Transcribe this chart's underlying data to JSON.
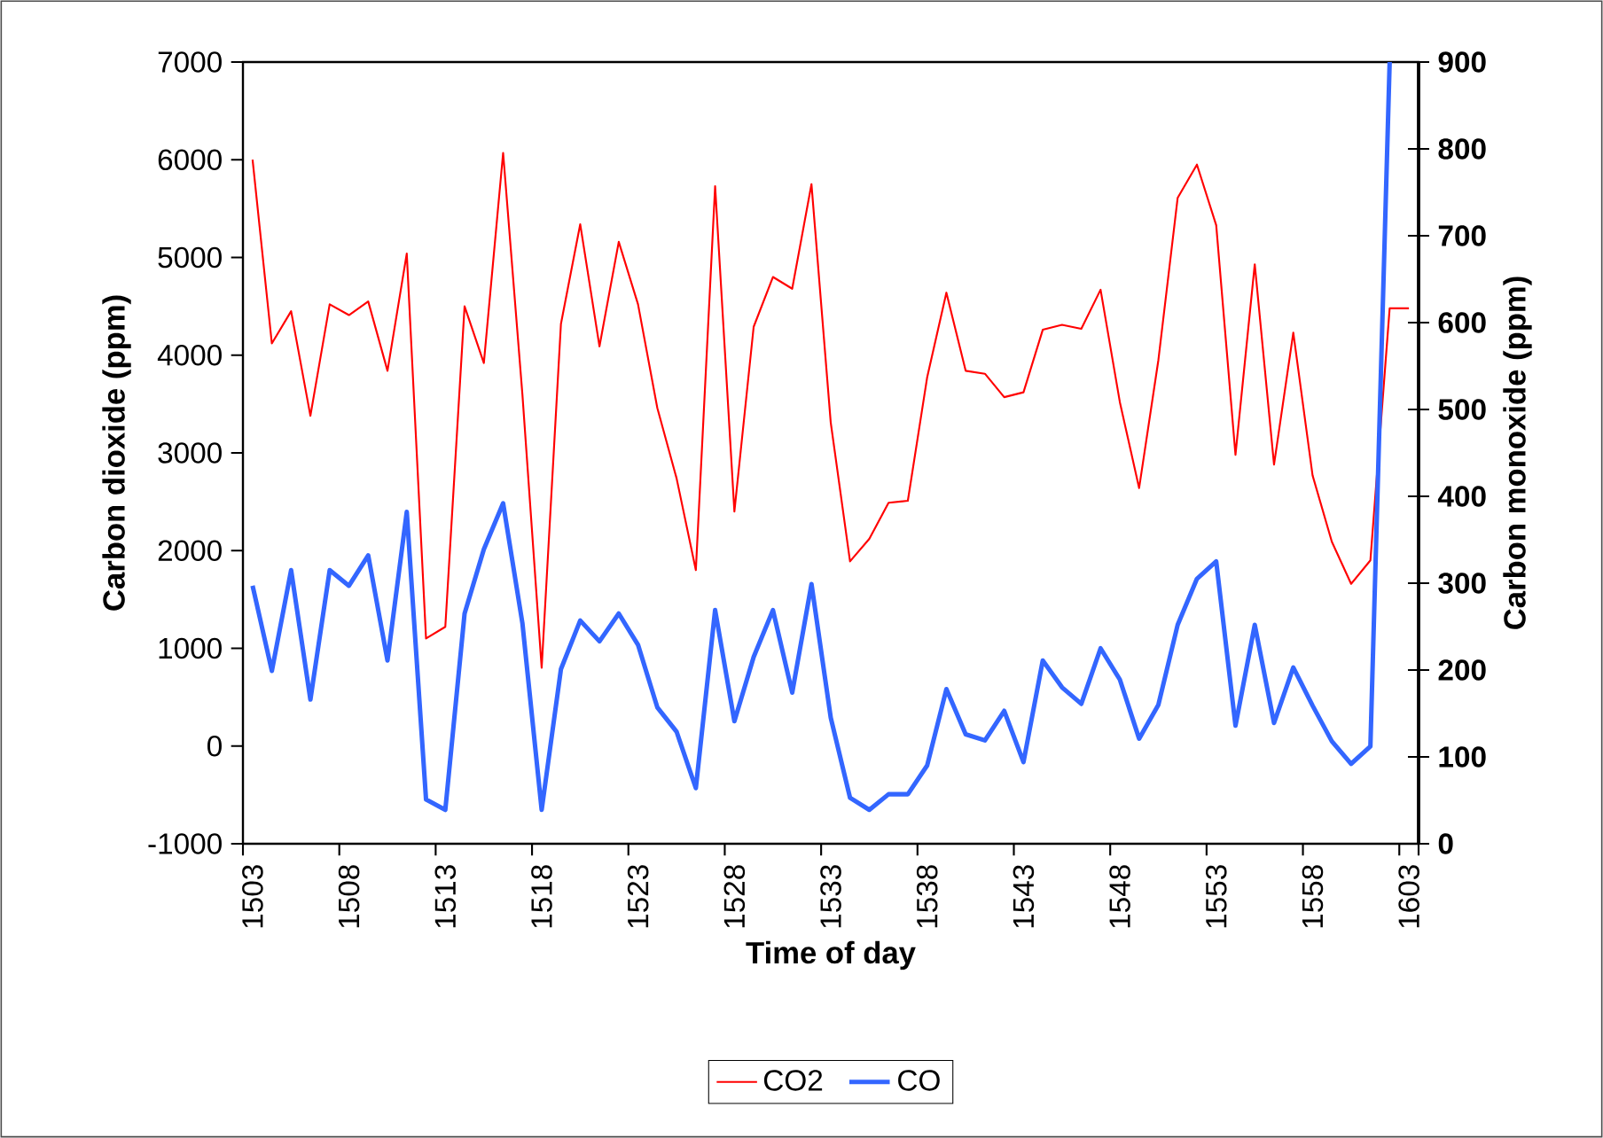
{
  "chart_data": {
    "type": "line",
    "xlabel": "Time of day",
    "ylabel": "Carbon dioxide (ppm)",
    "y2label": "Carbon monoxide (ppm)",
    "categories": [
      "1503",
      null,
      null,
      null,
      null,
      "1508",
      null,
      null,
      null,
      null,
      "1513",
      null,
      null,
      null,
      null,
      "1518",
      null,
      null,
      null,
      null,
      "1523",
      null,
      null,
      null,
      null,
      "1528",
      null,
      null,
      null,
      null,
      "1533",
      null,
      null,
      null,
      null,
      "1538",
      null,
      null,
      null,
      null,
      "1543",
      null,
      null,
      null,
      null,
      "1548",
      null,
      null,
      null,
      null,
      "1553",
      null,
      null,
      null,
      null,
      "1558",
      null,
      null,
      null,
      null,
      "1603"
    ],
    "series": [
      {
        "name": "CO2",
        "color": "#ff0000",
        "values": [
          6000,
          4120,
          4450,
          3380,
          4520,
          4410,
          4550,
          3840,
          5040,
          1100,
          1220,
          4500,
          3920,
          6070,
          3600,
          800,
          4320,
          5340,
          4090,
          5160,
          4520,
          3460,
          2740,
          1800,
          5730,
          2400,
          4290,
          4800,
          4680,
          5750,
          3310,
          1890,
          2120,
          2490,
          2510,
          3770,
          4640,
          3840,
          3810,
          3570,
          3620,
          4260,
          4310,
          4270,
          4670,
          3520,
          2640,
          3950,
          5610,
          5950,
          5330,
          2980,
          4930,
          2880,
          4230,
          2770,
          2090,
          1660,
          1900,
          4480,
          4480
        ]
      },
      {
        "name": "CO",
        "color": "#3366ff",
        "axis": "y2",
        "values": [
          297,
          199,
          315,
          166,
          315,
          297,
          332,
          211,
          382,
          51,
          39,
          265,
          339,
          392,
          254,
          39,
          201,
          257,
          233,
          265,
          229,
          157,
          129,
          64,
          269,
          141,
          215,
          269,
          174,
          299,
          145,
          53,
          39,
          57,
          57,
          90,
          178,
          126,
          119,
          153,
          94,
          211,
          180,
          161,
          225,
          189,
          121,
          160,
          252,
          305,
          325,
          136,
          252,
          139,
          203,
          159,
          118,
          92,
          112,
          900,
          null
        ]
      }
    ],
    "ylim": [
      -1000,
      7000
    ],
    "yticks": [
      -1000,
      0,
      1000,
      2000,
      3000,
      4000,
      5000,
      6000,
      7000
    ],
    "y2lim": [
      0,
      900
    ],
    "y2ticks": [
      0,
      100,
      200,
      300,
      400,
      500,
      600,
      700,
      800,
      900
    ],
    "legend": "bottom"
  }
}
